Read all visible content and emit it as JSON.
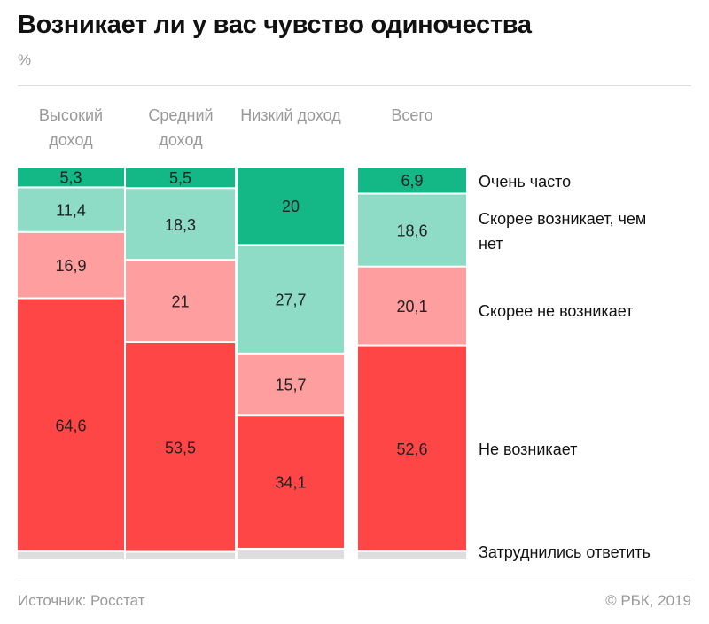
{
  "title": "Возникает ли у вас чувство одиночества",
  "unit": "%",
  "chart_data": {
    "type": "bar",
    "stacked": true,
    "categories": [
      "Высокий доход",
      "Средний доход",
      "Низкий доход",
      "Всего"
    ],
    "series": [
      {
        "name": "Очень часто",
        "color": "#13b886",
        "values": [
          5.3,
          5.5,
          20,
          6.9
        ]
      },
      {
        "name": "Скорее возникает, чем нет",
        "color": "#8edcc6",
        "values": [
          11.4,
          18.3,
          27.7,
          18.6
        ]
      },
      {
        "name": "Скорее не возникает",
        "color": "#ff9e9e",
        "values": [
          16.9,
          21,
          15.7,
          20.1
        ]
      },
      {
        "name": "Не возникает",
        "color": "#ff4646",
        "values": [
          64.6,
          53.5,
          34.1,
          52.6
        ]
      },
      {
        "name": "Затруднились ответить",
        "color": "#dddddd"
      }
    ],
    "ylim": [
      0,
      100
    ]
  },
  "footer": {
    "source": "Источник: Росстат",
    "copyright": "© РБК, 2019"
  }
}
